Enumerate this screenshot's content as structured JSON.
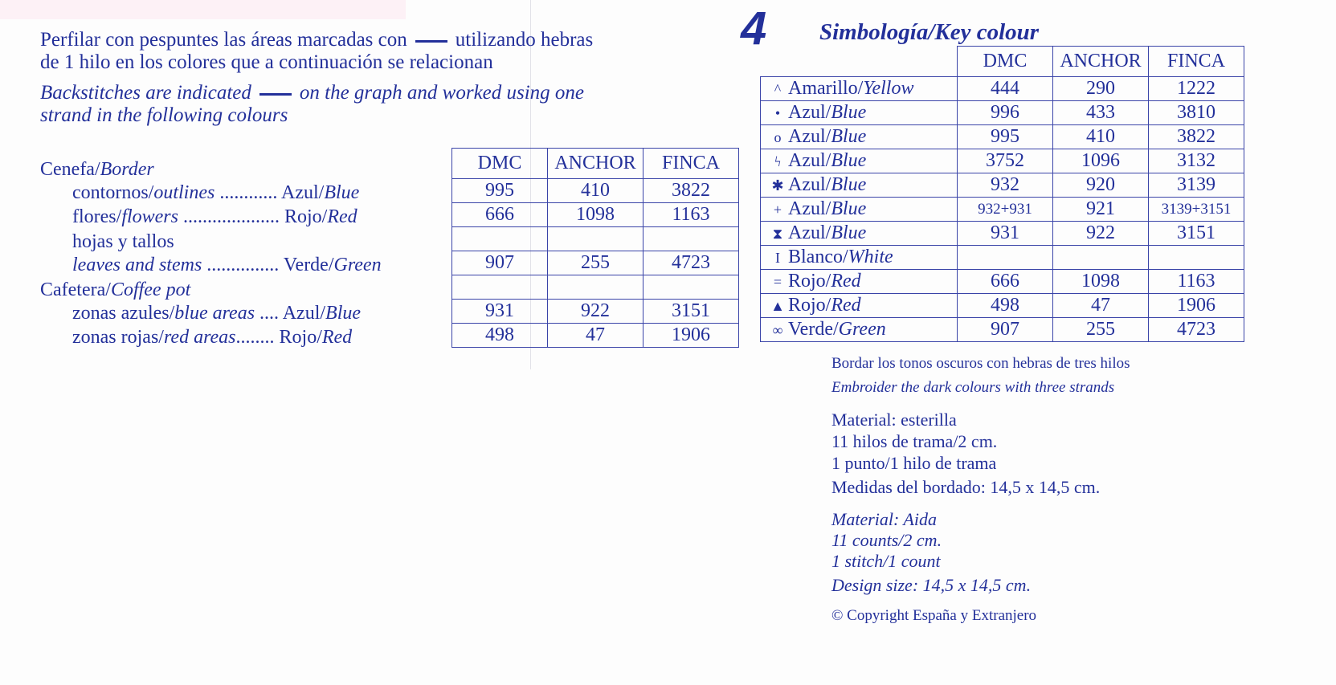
{
  "page_number": "4",
  "intro": {
    "es_line1_a": "Perfilar con pespuntes las áreas marcadas con",
    "es_line1_b": "utilizando hebras",
    "es_line2": "de 1 hilo en los colores que a continuación se relacionan",
    "en_line1_a": "Backstitches are indicated",
    "en_line1_b": "on the graph and worked using one",
    "en_line2": "strand in the following colours"
  },
  "backstitch": {
    "headers": [
      "DMC",
      "ANCHOR",
      "FINCA"
    ],
    "labels": [
      {
        "es": "Cenefa/",
        "en": "Border",
        "indent": false,
        "color": ""
      },
      {
        "es": "contornos/",
        "en": "outlines",
        "indent": true,
        "color": " ............ Azul/",
        "color_en": "Blue"
      },
      {
        "es": "flores/",
        "en": "flowers",
        "indent": true,
        "color": " .................... Rojo/",
        "color_en": "Red"
      },
      {
        "es": "hojas y tallos",
        "en": "",
        "indent": true,
        "color": ""
      },
      {
        "es": "",
        "en": "leaves and stems",
        "indent": true,
        "color": " ............... Verde/",
        "color_en": "Green"
      },
      {
        "es": "Cafetera/",
        "en": "Coffee pot",
        "indent": false,
        "color": ""
      },
      {
        "es": "zonas azules/",
        "en": "blue areas",
        "indent": true,
        "color": " .... Azul/",
        "color_en": "Blue"
      },
      {
        "es": "zonas rojas/",
        "en": "red areas",
        "indent": true,
        "color": "........ Rojo/",
        "color_en": "Red"
      }
    ],
    "rows": [
      [
        "995",
        "410",
        "3822"
      ],
      [
        "666",
        "1098",
        "1163"
      ],
      [
        "",
        "",
        ""
      ],
      [
        "907",
        "255",
        "4723"
      ],
      [
        "",
        "",
        ""
      ],
      [
        "931",
        "922",
        "3151"
      ],
      [
        "498",
        "47",
        "1906"
      ]
    ]
  },
  "key": {
    "title": "Simbología/Key colour",
    "headers": [
      "DMC",
      "ANCHOR",
      "FINCA"
    ],
    "rows": [
      {
        "symbol": "^",
        "symbol_icon": "caret-symbol-icon",
        "es": "Amarillo/",
        "en": "Yellow",
        "dmc": "444",
        "anchor": "290",
        "finca": "1222"
      },
      {
        "symbol": "•",
        "symbol_icon": "dot-symbol-icon",
        "es": "Azul/",
        "en": "Blue",
        "dmc": "996",
        "anchor": "433",
        "finca": "3810"
      },
      {
        "symbol": "o",
        "symbol_icon": "circle-symbol-icon",
        "es": "Azul/",
        "en": "Blue",
        "dmc": "995",
        "anchor": "410",
        "finca": "3822"
      },
      {
        "symbol": "ϟ",
        "symbol_icon": "lightning-symbol-icon",
        "es": "Azul/",
        "en": "Blue",
        "dmc": "3752",
        "anchor": "1096",
        "finca": "3132"
      },
      {
        "symbol": "✱",
        "symbol_icon": "asterisk-symbol-icon",
        "es": "Azul/",
        "en": "Blue",
        "dmc": "932",
        "anchor": "920",
        "finca": "3139"
      },
      {
        "symbol": "+",
        "symbol_icon": "plus-symbol-icon",
        "es": "Azul/",
        "en": "Blue",
        "dmc": "932+931",
        "anchor": "921",
        "finca": "3139+3151"
      },
      {
        "symbol": "⧗",
        "symbol_icon": "hourglass-symbol-icon",
        "es": "Azul/",
        "en": "Blue",
        "dmc": "931",
        "anchor": "922",
        "finca": "3151"
      },
      {
        "symbol": "I",
        "symbol_icon": "bar-symbol-icon",
        "es": "Blanco/",
        "en": "White",
        "dmc": "",
        "anchor": "",
        "finca": ""
      },
      {
        "symbol": "=",
        "symbol_icon": "equals-symbol-icon",
        "es": "Rojo/",
        "en": "Red",
        "dmc": "666",
        "anchor": "1098",
        "finca": "1163"
      },
      {
        "symbol": "▲",
        "symbol_icon": "triangle-symbol-icon",
        "es": "Rojo/",
        "en": "Red",
        "dmc": "498",
        "anchor": "47",
        "finca": "1906"
      },
      {
        "symbol": "∞",
        "symbol_icon": "infinity-symbol-icon",
        "es": "Verde/",
        "en": "Green",
        "dmc": "907",
        "anchor": "255",
        "finca": "4723"
      }
    ]
  },
  "notes": {
    "strands_es": "Bordar los tonos oscuros con hebras de tres hilos",
    "strands_en": "Embroider the dark colours with three strands",
    "material_es": [
      "Material: esterilla",
      "11 hilos de trama/2 cm.",
      "1 punto/1 hilo de trama",
      "Medidas del bordado: 14,5 x 14,5 cm."
    ],
    "material_en": [
      "Material: Aida",
      "11 counts/2 cm.",
      "1 stitch/1 count",
      "Design size: 14,5 x 14,5 cm."
    ],
    "copyright": "© Copyright España y Extranjero"
  },
  "colors": {
    "ink": "#23309a",
    "paper": "#fdfdfd"
  }
}
